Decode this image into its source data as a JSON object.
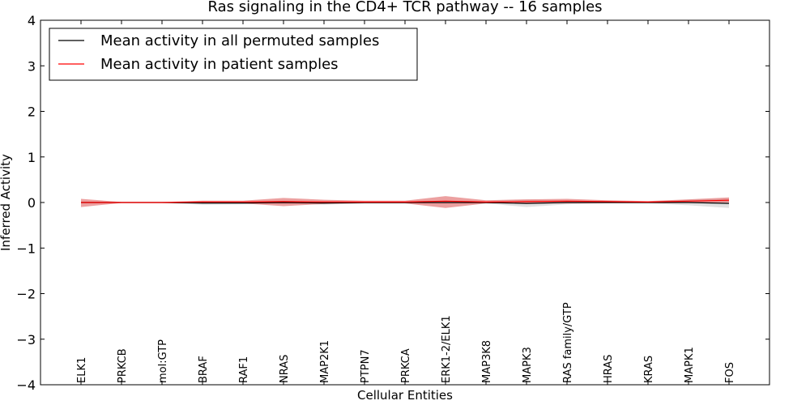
{
  "chart_data": {
    "type": "line",
    "title": "Ras signaling in the CD4+ TCR pathway -- 16 samples",
    "xlabel": "Cellular Entities",
    "ylabel": "Inferred Activity",
    "ylim": [
      -4,
      4
    ],
    "yticks": [
      -4,
      -3,
      -2,
      -1,
      0,
      1,
      2,
      3,
      4
    ],
    "ytick_labels": [
      "−4",
      "−3",
      "−2",
      "−1",
      "0",
      "1",
      "2",
      "3",
      "4"
    ],
    "categories": [
      "ELK1",
      "PRKCB",
      "mol:GTP",
      "BRAF",
      "RAF1",
      "NRAS",
      "MAP2K1",
      "PTPN7",
      "PRKCA",
      "ERK1-2/ELK1",
      "MAP3K8",
      "MAPK3",
      "RAS family/GTP",
      "HRAS",
      "KRAS",
      "MAPK1",
      "FOS"
    ],
    "legend_position": "upper-left",
    "series": [
      {
        "name": "Mean activity in all permuted samples",
        "color": "#000000",
        "band_color": "#c8c8c8",
        "values": [
          0.0,
          0.0,
          0.0,
          -0.01,
          -0.01,
          0.0,
          -0.01,
          0.0,
          0.0,
          0.0,
          0.0,
          -0.02,
          0.0,
          0.0,
          0.0,
          0.0,
          -0.02
        ],
        "band_low": [
          -0.02,
          -0.01,
          -0.01,
          -0.05,
          -0.04,
          -0.03,
          -0.05,
          -0.02,
          -0.02,
          -0.03,
          -0.02,
          -0.1,
          -0.04,
          -0.02,
          -0.02,
          -0.06,
          -0.12
        ],
        "band_high": [
          0.02,
          0.01,
          0.01,
          0.03,
          0.02,
          0.03,
          0.03,
          0.02,
          0.02,
          0.03,
          0.02,
          0.06,
          0.04,
          0.02,
          0.02,
          0.06,
          0.08
        ]
      },
      {
        "name": "Mean activity in patient samples",
        "color": "#ff0000",
        "band_color": "#e06060",
        "values": [
          0.0,
          0.0,
          0.0,
          0.01,
          0.01,
          0.02,
          0.01,
          0.01,
          0.01,
          0.03,
          0.01,
          0.02,
          0.03,
          0.02,
          0.01,
          0.03,
          0.05
        ],
        "band_low": [
          -0.1,
          -0.01,
          -0.01,
          -0.02,
          -0.02,
          -0.08,
          -0.03,
          -0.02,
          -0.02,
          -0.12,
          -0.02,
          -0.02,
          -0.02,
          -0.01,
          -0.01,
          -0.01,
          0.0
        ],
        "band_high": [
          0.08,
          0.01,
          0.01,
          0.04,
          0.04,
          0.1,
          0.06,
          0.04,
          0.04,
          0.14,
          0.05,
          0.07,
          0.08,
          0.05,
          0.03,
          0.07,
          0.11
        ]
      }
    ]
  }
}
